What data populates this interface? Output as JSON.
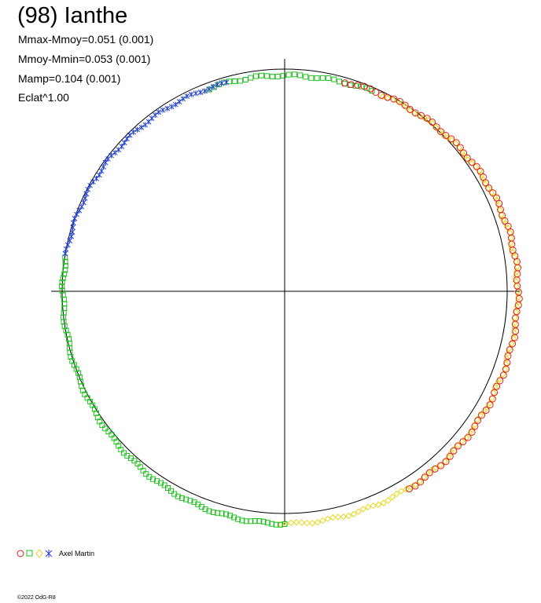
{
  "header": {
    "title": "(98) Ianthe",
    "stats": [
      "Mmax-Mmoy=0.051 (0.001)",
      "Mmoy-Mmin=0.053 (0.001)",
      "Mamp=0.104 (0.001)",
      "Eclat^1.00"
    ]
  },
  "legend": {
    "observer": "Axel Martin"
  },
  "footer": {
    "copyright": "©2022 OdG-R8"
  }
}
